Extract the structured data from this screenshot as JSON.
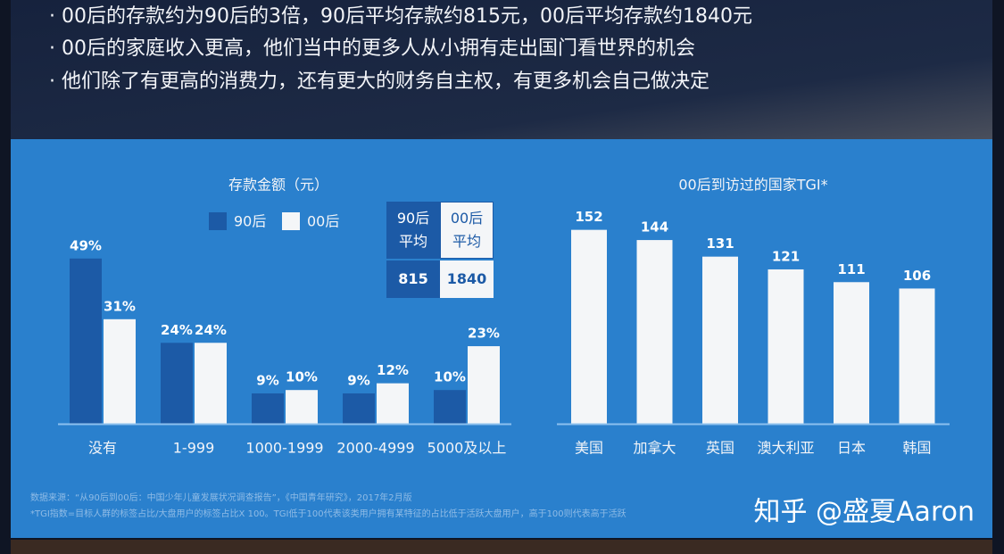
{
  "bullets": [
    "· 00后的存款约为90后的3倍，90后平均存款约815元，00后平均存款约1840元",
    "· 00后的家庭收入更高，他们当中的更多人从小拥有走出国门看世界的机会",
    "· 他们除了有更高的消费力，还有更大的财务自主权，有更多机会自己做决定"
  ],
  "chart_data": [
    {
      "type": "grouped-bar",
      "title": "存款金额（元）",
      "categories": [
        "没有",
        "1-999",
        "1000-1999",
        "2000-4999",
        "5000及以上"
      ],
      "series": [
        {
          "name": "90后",
          "color": "#1c5aa6",
          "values": [
            49,
            24,
            9,
            9,
            10
          ],
          "value_labels": [
            "49%",
            "24%",
            "9%",
            "9%",
            "10%"
          ]
        },
        {
          "name": "00后",
          "color": "#f4f6f8",
          "values": [
            31,
            24,
            10,
            12,
            23
          ],
          "value_labels": [
            "31%",
            "24%",
            "10%",
            "12%",
            "23%"
          ]
        }
      ]
    },
    {
      "type": "bar",
      "title": "00后到访过的国家TGI*",
      "categories": [
        "美国",
        "加拿大",
        "英国",
        "澳大利亚",
        "日本",
        "韩国"
      ],
      "values": [
        152,
        144,
        131,
        121,
        111,
        106
      ],
      "color": "#f4f6f8"
    }
  ],
  "table": {
    "headers": [
      "90后\n平均",
      "00后\n平均"
    ],
    "values": [
      815,
      1840
    ]
  },
  "source": [
    "数据来源：“从90后到00后：中国少年儿童发展状况调查报告”，《中国青年研究》，2017年2月版",
    "*TGI指数=目标人群的标签占比/大盘用户的标签占比X 100。TGI低于100代表该类用户拥有某特征的占比低于活跃大盘用户，高于100则代表高于活跃"
  ],
  "watermark": "知乎 @盛夏Aaron"
}
